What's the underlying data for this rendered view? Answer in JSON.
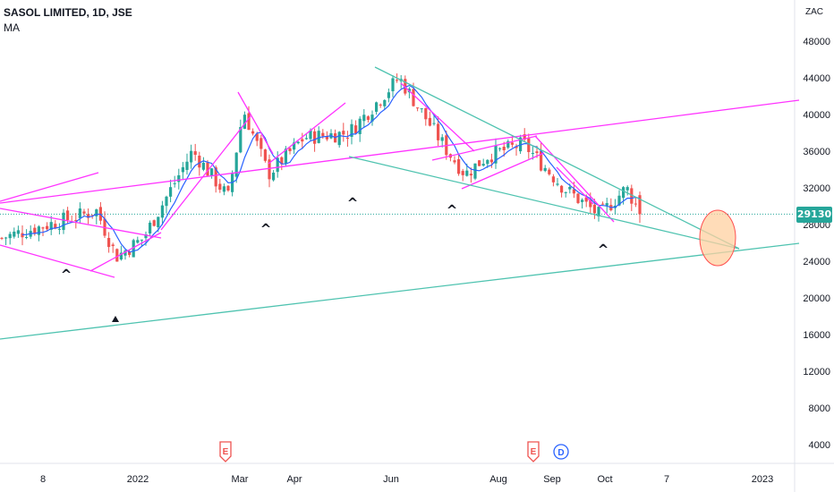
{
  "legend": {
    "title": "SASOL LIMITED, 1D, JSE",
    "indicator": "MA"
  },
  "price_axis": {
    "currency": "ZAC",
    "last_price": "29130"
  },
  "colors": {
    "bull_candle": "#26a69a",
    "bear_candle": "#ef5350",
    "ma_line": "#2962ff",
    "trendline_magenta": "#ff33ff",
    "trendline_teal": "#4fc3b0",
    "target_ellipse_fill": "#ffd0a0",
    "target_ellipse_stroke": "#ff5050"
  },
  "chart_data": {
    "type": "candlestick",
    "title": "SASOL LIMITED, 1D, JSE",
    "indicator": "MA",
    "y_axis": {
      "ticks": [
        4000,
        8000,
        12000,
        16000,
        20000,
        24000,
        28000,
        32000,
        36000,
        40000,
        44000,
        48000
      ],
      "range": [
        2000,
        50500
      ]
    },
    "x_axis": {
      "ticks": [
        "8",
        "2022",
        "Mar",
        "Apr",
        "Jun",
        "Aug",
        "Sep",
        "Oct",
        "7",
        "2023"
      ]
    },
    "last_price": 29130,
    "price_path": [
      {
        "period": "Nov 2021",
        "close": 26500
      },
      {
        "period": "Dec 2021",
        "close": 29500
      },
      {
        "period": "Dec 2021",
        "close": 24500
      },
      {
        "period": "Jan 2022",
        "close": 26500
      },
      {
        "period": "Feb 2022",
        "close": 36000
      },
      {
        "period": "Feb 2022",
        "close": 31000
      },
      {
        "period": "Mar 2022",
        "close": 40500
      },
      {
        "period": "Mar 2022",
        "close": 33500
      },
      {
        "period": "Apr 2022",
        "close": 37500
      },
      {
        "period": "May 2022",
        "close": 38000
      },
      {
        "period": "Jun 2022",
        "close": 44000
      },
      {
        "period": "Jul 2022",
        "close": 36000
      },
      {
        "period": "Jul 2022",
        "close": 33500
      },
      {
        "period": "Aug 2022",
        "close": 35500
      },
      {
        "period": "Aug 2022",
        "close": 36800
      },
      {
        "period": "Sep 2022",
        "close": 32000
      },
      {
        "period": "Sep 2022",
        "close": 29000
      },
      {
        "period": "Oct 2022",
        "close": 32000
      },
      {
        "period": "Oct 2022",
        "close": 29130
      }
    ],
    "markers": {
      "earnings": [
        "E",
        "E"
      ],
      "dividend": [
        "D"
      ],
      "pivot_low_count": 5
    }
  }
}
